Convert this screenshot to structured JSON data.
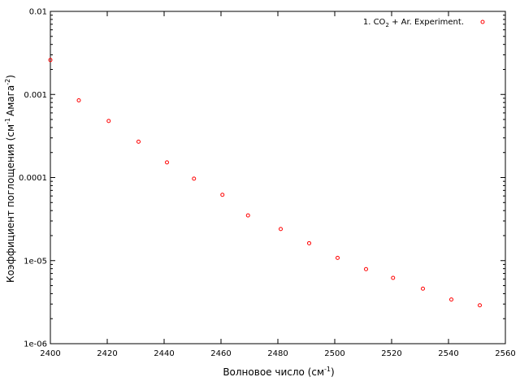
{
  "chart_data": {
    "type": "scatter",
    "xlabel": {
      "main": "Волновое число (см",
      "sup": "-1",
      "end": ")"
    },
    "ylabel": {
      "p1": "Коэффициент поглощения (см",
      "sup1": "-1",
      "p2": "Амага",
      "sup2": "-2",
      "p3": ")"
    },
    "xlim": [
      2400,
      2560
    ],
    "ylim": [
      1e-06,
      0.01
    ],
    "yscale": "log",
    "grid": false,
    "legend_position": "top-right",
    "x_ticks": [
      "2400",
      "2420",
      "2440",
      "2460",
      "2480",
      "2500",
      "2520",
      "2540",
      "2560"
    ],
    "y_ticks": [
      "1e-06",
      "1e-05",
      "0.0001",
      "0.001",
      "0.01"
    ],
    "colors": {
      "series": "#ff0000",
      "axis": "#000000"
    },
    "series": [
      {
        "legend": {
          "prefix": "1. CO",
          "sub": "2",
          "suffix": " + Ar. Experiment."
        },
        "marker": "open-circle",
        "x": [
          2400,
          2410,
          2420.5,
          2431,
          2441,
          2450.5,
          2460.5,
          2469.5,
          2481,
          2491,
          2501,
          2511,
          2520.5,
          2531,
          2541,
          2551
        ],
        "y": [
          0.0026,
          0.00085,
          0.00048,
          0.00027,
          0.000152,
          9.7e-05,
          6.2e-05,
          3.5e-05,
          2.4e-05,
          1.62e-05,
          1.08e-05,
          7.9e-06,
          6.2e-06,
          4.6e-06,
          3.4e-06,
          2.9e-06
        ]
      }
    ]
  }
}
